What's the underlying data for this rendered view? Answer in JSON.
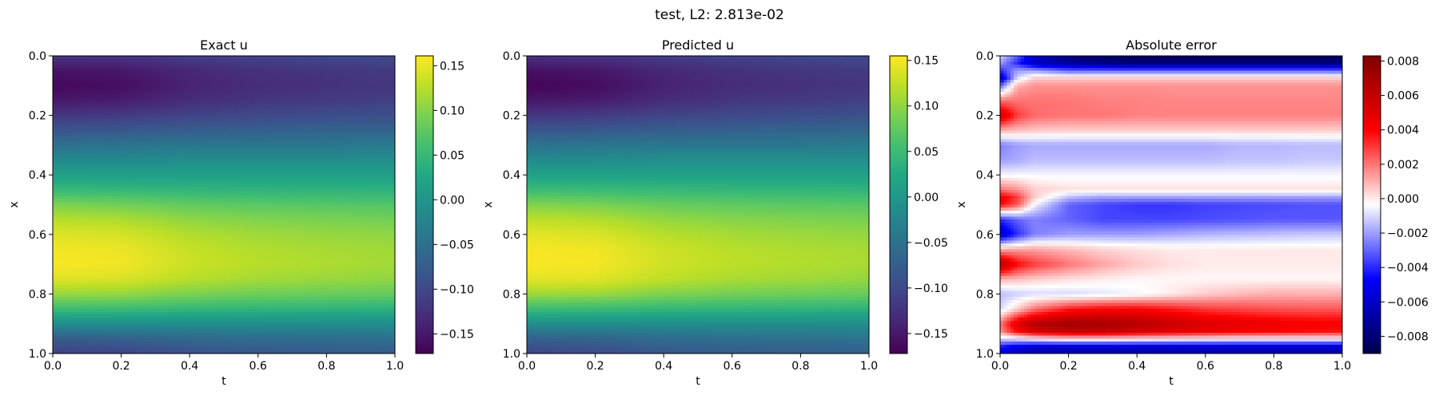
{
  "figure": {
    "suptitle": "test, L2: 2.813e-02"
  },
  "chart_data": [
    {
      "type": "heatmap",
      "title": "Exact u",
      "xlabel": "t",
      "ylabel": "x",
      "xlim": [
        0.0,
        1.0
      ],
      "ylim": [
        1.0,
        0.0
      ],
      "xticks": [
        "0.0",
        "0.2",
        "0.4",
        "0.6",
        "0.8",
        "1.0"
      ],
      "yticks": [
        "0.0",
        "0.2",
        "0.4",
        "0.6",
        "0.8",
        "1.0"
      ],
      "colormap": "viridis",
      "clim": [
        -0.172,
        0.161
      ],
      "colorbar_ticks": [
        {
          "value": 0.15,
          "label": "0.15"
        },
        {
          "value": 0.1,
          "label": "0.10"
        },
        {
          "value": 0.05,
          "label": "0.05"
        },
        {
          "value": 0.0,
          "label": "0.00"
        },
        {
          "value": -0.05,
          "label": "−0.05"
        },
        {
          "value": -0.1,
          "label": "−0.10"
        },
        {
          "value": -0.15,
          "label": "−0.15"
        }
      ],
      "x_samples": [
        0.0,
        0.2,
        0.4,
        0.6,
        0.8,
        1.0
      ],
      "y_samples": [
        0.0,
        0.05,
        0.1,
        0.15,
        0.2,
        0.25,
        0.3,
        0.35,
        0.4,
        0.45,
        0.5,
        0.55,
        0.6,
        0.65,
        0.7,
        0.75,
        0.8,
        0.85,
        0.9,
        0.95,
        1.0
      ],
      "values": [
        [
          -0.12,
          -0.12,
          -0.11,
          -0.105,
          -0.1,
          -0.1
        ],
        [
          -0.155,
          -0.15,
          -0.135,
          -0.125,
          -0.12,
          -0.115
        ],
        [
          -0.165,
          -0.16,
          -0.14,
          -0.13,
          -0.125,
          -0.12
        ],
        [
          -0.15,
          -0.145,
          -0.13,
          -0.12,
          -0.115,
          -0.11
        ],
        [
          -0.12,
          -0.115,
          -0.105,
          -0.1,
          -0.095,
          -0.09
        ],
        [
          -0.085,
          -0.08,
          -0.075,
          -0.07,
          -0.065,
          -0.065
        ],
        [
          -0.05,
          -0.045,
          -0.04,
          -0.04,
          -0.04,
          -0.035
        ],
        [
          -0.015,
          -0.015,
          -0.01,
          -0.01,
          -0.01,
          -0.01
        ],
        [
          0.015,
          0.015,
          0.015,
          0.015,
          0.015,
          0.015
        ],
        [
          0.05,
          0.048,
          0.045,
          0.043,
          0.042,
          0.04
        ],
        [
          0.095,
          0.09,
          0.08,
          0.075,
          0.072,
          0.07
        ],
        [
          0.125,
          0.12,
          0.105,
          0.098,
          0.094,
          0.09
        ],
        [
          0.145,
          0.14,
          0.122,
          0.113,
          0.108,
          0.105
        ],
        [
          0.155,
          0.152,
          0.132,
          0.122,
          0.117,
          0.113
        ],
        [
          0.158,
          0.155,
          0.135,
          0.125,
          0.12,
          0.115
        ],
        [
          0.145,
          0.142,
          0.125,
          0.115,
          0.11,
          0.105
        ],
        [
          0.11,
          0.108,
          0.095,
          0.088,
          0.085,
          0.082
        ],
        [
          0.055,
          0.053,
          0.047,
          0.044,
          0.042,
          0.04
        ],
        [
          -0.01,
          -0.01,
          -0.01,
          -0.01,
          -0.01,
          -0.01
        ],
        [
          -0.075,
          -0.07,
          -0.06,
          -0.055,
          -0.053,
          -0.05
        ],
        [
          -0.11,
          -0.105,
          -0.09,
          -0.085,
          -0.08,
          -0.078
        ]
      ]
    },
    {
      "type": "heatmap",
      "title": "Predicted u",
      "xlabel": "t",
      "ylabel": "x",
      "xlim": [
        0.0,
        1.0
      ],
      "ylim": [
        1.0,
        0.0
      ],
      "xticks": [
        "0.0",
        "0.2",
        "0.4",
        "0.6",
        "0.8",
        "1.0"
      ],
      "yticks": [
        "0.0",
        "0.2",
        "0.4",
        "0.6",
        "0.8",
        "1.0"
      ],
      "colormap": "viridis",
      "clim": [
        -0.172,
        0.155
      ],
      "colorbar_ticks": [
        {
          "value": 0.15,
          "label": "0.15"
        },
        {
          "value": 0.1,
          "label": "0.10"
        },
        {
          "value": 0.05,
          "label": "0.05"
        },
        {
          "value": 0.0,
          "label": "0.00"
        },
        {
          "value": -0.05,
          "label": "−0.05"
        },
        {
          "value": -0.1,
          "label": "−0.10"
        },
        {
          "value": -0.15,
          "label": "−0.15"
        }
      ],
      "x_samples": [
        0.0,
        0.2,
        0.4,
        0.6,
        0.8,
        1.0
      ],
      "y_samples": [
        0.0,
        0.05,
        0.1,
        0.15,
        0.2,
        0.25,
        0.3,
        0.35,
        0.4,
        0.45,
        0.5,
        0.55,
        0.6,
        0.65,
        0.7,
        0.75,
        0.8,
        0.85,
        0.9,
        0.95,
        1.0
      ],
      "values": [
        [
          -0.125,
          -0.122,
          -0.112,
          -0.107,
          -0.102,
          -0.1
        ],
        [
          -0.158,
          -0.152,
          -0.136,
          -0.126,
          -0.121,
          -0.116
        ],
        [
          -0.168,
          -0.162,
          -0.141,
          -0.131,
          -0.126,
          -0.121
        ],
        [
          -0.152,
          -0.147,
          -0.131,
          -0.121,
          -0.116,
          -0.111
        ],
        [
          -0.121,
          -0.116,
          -0.106,
          -0.101,
          -0.096,
          -0.091
        ],
        [
          -0.085,
          -0.081,
          -0.076,
          -0.071,
          -0.066,
          -0.066
        ],
        [
          -0.05,
          -0.045,
          -0.041,
          -0.041,
          -0.041,
          -0.036
        ],
        [
          -0.015,
          -0.015,
          -0.011,
          -0.011,
          -0.011,
          -0.011
        ],
        [
          0.015,
          0.015,
          0.014,
          0.014,
          0.014,
          0.014
        ],
        [
          0.05,
          0.048,
          0.045,
          0.043,
          0.042,
          0.04
        ],
        [
          0.093,
          0.089,
          0.079,
          0.074,
          0.071,
          0.069
        ],
        [
          0.122,
          0.118,
          0.103,
          0.096,
          0.092,
          0.089
        ],
        [
          0.142,
          0.137,
          0.12,
          0.111,
          0.106,
          0.103
        ],
        [
          0.152,
          0.149,
          0.13,
          0.12,
          0.115,
          0.111
        ],
        [
          0.153,
          0.151,
          0.132,
          0.122,
          0.117,
          0.113
        ],
        [
          0.142,
          0.14,
          0.123,
          0.113,
          0.108,
          0.103
        ],
        [
          0.108,
          0.106,
          0.093,
          0.086,
          0.083,
          0.08
        ],
        [
          0.05,
          0.048,
          0.043,
          0.04,
          0.039,
          0.037
        ],
        [
          -0.012,
          -0.012,
          -0.012,
          -0.012,
          -0.012,
          -0.012
        ],
        [
          -0.072,
          -0.068,
          -0.058,
          -0.053,
          -0.051,
          -0.048
        ],
        [
          -0.105,
          -0.1,
          -0.086,
          -0.081,
          -0.077,
          -0.075
        ]
      ]
    },
    {
      "type": "heatmap",
      "title": "Absolute error",
      "xlabel": "t",
      "ylabel": "x",
      "xlim": [
        0.0,
        1.0
      ],
      "ylim": [
        1.0,
        0.0
      ],
      "xticks": [
        "0.0",
        "0.2",
        "0.4",
        "0.6",
        "0.8",
        "1.0"
      ],
      "yticks": [
        "0.0",
        "0.2",
        "0.4",
        "0.6",
        "0.8",
        "1.0"
      ],
      "colormap": "seismic",
      "clim": [
        -0.009,
        0.0083
      ],
      "colorbar_ticks": [
        {
          "value": 0.008,
          "label": "0.008"
        },
        {
          "value": 0.006,
          "label": "0.006"
        },
        {
          "value": 0.004,
          "label": "0.004"
        },
        {
          "value": 0.002,
          "label": "0.002"
        },
        {
          "value": 0.0,
          "label": "0.000"
        },
        {
          "value": -0.002,
          "label": "−0.002"
        },
        {
          "value": -0.004,
          "label": "−0.004"
        },
        {
          "value": -0.006,
          "label": "−0.006"
        },
        {
          "value": -0.008,
          "label": "−0.008"
        }
      ],
      "x_samples": [
        0.0,
        0.05,
        0.1,
        0.2,
        0.3,
        0.4,
        0.5,
        0.6,
        0.7,
        0.8,
        0.9,
        1.0
      ],
      "y_samples": [
        0.0,
        0.025,
        0.05,
        0.075,
        0.1,
        0.15,
        0.2,
        0.25,
        0.3,
        0.35,
        0.4,
        0.45,
        0.475,
        0.5,
        0.55,
        0.6,
        0.65,
        0.7,
        0.75,
        0.8,
        0.85,
        0.9,
        0.925,
        0.95,
        0.975,
        1.0
      ],
      "values": [
        [
          -0.001,
          -0.003,
          -0.006,
          -0.008,
          -0.0085,
          -0.0088,
          -0.0088,
          -0.0088,
          -0.0088,
          -0.0088,
          -0.0088,
          -0.0088
        ],
        [
          -0.002,
          -0.004,
          -0.006,
          -0.007,
          -0.0075,
          -0.0078,
          -0.0078,
          -0.0078,
          -0.0078,
          -0.0078,
          -0.0078,
          -0.0078
        ],
        [
          -0.004,
          -0.002,
          -0.002,
          -0.003,
          -0.003,
          -0.003,
          -0.003,
          -0.003,
          -0.003,
          -0.003,
          -0.003,
          -0.003
        ],
        [
          -0.006,
          -0.001,
          0.0005,
          0.0005,
          0.0005,
          0.0005,
          0.0005,
          0.0005,
          0.0005,
          0.0005,
          0.0005,
          0.0005
        ],
        [
          -0.003,
          0.001,
          0.0015,
          0.0015,
          0.0015,
          0.0015,
          0.0015,
          0.0015,
          0.0015,
          0.0015,
          0.0015,
          0.0015
        ],
        [
          0.002,
          0.002,
          0.002,
          0.002,
          0.0018,
          0.0018,
          0.0017,
          0.0017,
          0.0017,
          0.0017,
          0.0017,
          0.0017
        ],
        [
          0.0055,
          0.003,
          0.0022,
          0.002,
          0.002,
          0.0018,
          0.0018,
          0.0018,
          0.0018,
          0.0018,
          0.0018,
          0.0018
        ],
        [
          0.001,
          0.0008,
          0.0006,
          0.0005,
          0.0005,
          0.0005,
          0.0005,
          0.0005,
          0.0005,
          0.0005,
          0.0005,
          0.0005
        ],
        [
          -0.0025,
          -0.002,
          -0.0018,
          -0.0018,
          -0.0018,
          -0.0018,
          -0.0018,
          -0.0018,
          -0.0016,
          -0.0016,
          -0.0015,
          -0.0015
        ],
        [
          -0.002,
          -0.0018,
          -0.0015,
          -0.0015,
          -0.0015,
          -0.0015,
          -0.0015,
          -0.0015,
          -0.0014,
          -0.0014,
          -0.0013,
          -0.0013
        ],
        [
          -0.0005,
          -0.0005,
          -0.0005,
          -0.0005,
          -0.0005,
          -0.0005,
          -0.0005,
          -0.0005,
          -0.0005,
          -0.0005,
          -0.0005,
          -0.0005
        ],
        [
          0.002,
          0.0015,
          0.0005,
          0.0002,
          0.0002,
          0.0002,
          0.0002,
          0.0002,
          0.0002,
          0.0002,
          0.0002,
          0.0002
        ],
        [
          0.0045,
          0.003,
          0.0005,
          -0.0015,
          -0.002,
          -0.002,
          -0.002,
          -0.002,
          -0.002,
          -0.002,
          -0.002,
          -0.002
        ],
        [
          0.004,
          0.0025,
          -0.0005,
          -0.003,
          -0.0035,
          -0.0038,
          -0.0038,
          -0.0036,
          -0.0035,
          -0.0034,
          -0.0033,
          -0.0033
        ],
        [
          -0.004,
          -0.003,
          -0.0025,
          -0.003,
          -0.0035,
          -0.0035,
          -0.0035,
          -0.0034,
          -0.0033,
          -0.0032,
          -0.0032,
          -0.0032
        ],
        [
          -0.006,
          -0.004,
          -0.0025,
          -0.002,
          -0.002,
          -0.002,
          -0.0018,
          -0.0016,
          -0.0015,
          -0.0014,
          -0.0013,
          -0.0013
        ],
        [
          0.001,
          0.0012,
          0.0012,
          0.0008,
          0.0004,
          0.0002,
          0.0,
          0.0,
          0.0,
          0.0,
          0.0,
          0.0
        ],
        [
          0.0065,
          0.004,
          0.003,
          0.002,
          0.0012,
          0.0006,
          0.0002,
          0.0,
          0.0,
          0.0,
          0.0,
          0.0
        ],
        [
          0.001,
          0.0008,
          0.0005,
          0.0002,
          0.0,
          -0.0002,
          -0.0002,
          -0.0002,
          -0.0002,
          -0.0002,
          -0.0002,
          -0.0002
        ],
        [
          -0.0015,
          -0.0012,
          -0.001,
          -0.001,
          -0.0008,
          -0.0005,
          0.0,
          0.0005,
          0.0008,
          0.001,
          0.001,
          0.001
        ],
        [
          -0.001,
          0.0005,
          0.002,
          0.0035,
          0.004,
          0.004,
          0.0035,
          0.003,
          0.0028,
          0.0026,
          0.0025,
          0.0025
        ],
        [
          0.002,
          0.005,
          0.0065,
          0.0072,
          0.007,
          0.0065,
          0.0058,
          0.0052,
          0.0048,
          0.0045,
          0.0043,
          0.0042
        ],
        [
          0.0015,
          0.004,
          0.0055,
          0.006,
          0.006,
          0.0055,
          0.005,
          0.0045,
          0.0042,
          0.004,
          0.0038,
          0.0037
        ],
        [
          -0.001,
          -0.0005,
          0.0,
          0.0005,
          0.0005,
          0.0003,
          0.0002,
          0.0001,
          0.0,
          0.0,
          0.0,
          0.0
        ],
        [
          -0.004,
          -0.005,
          -0.0055,
          -0.0055,
          -0.0055,
          -0.0055,
          -0.0055,
          -0.0055,
          -0.0055,
          -0.0055,
          -0.0055,
          -0.0055
        ],
        [
          -0.006,
          -0.0065,
          -0.007,
          -0.007,
          -0.007,
          -0.007,
          -0.007,
          -0.007,
          -0.007,
          -0.007,
          -0.007,
          -0.007
        ]
      ]
    }
  ]
}
